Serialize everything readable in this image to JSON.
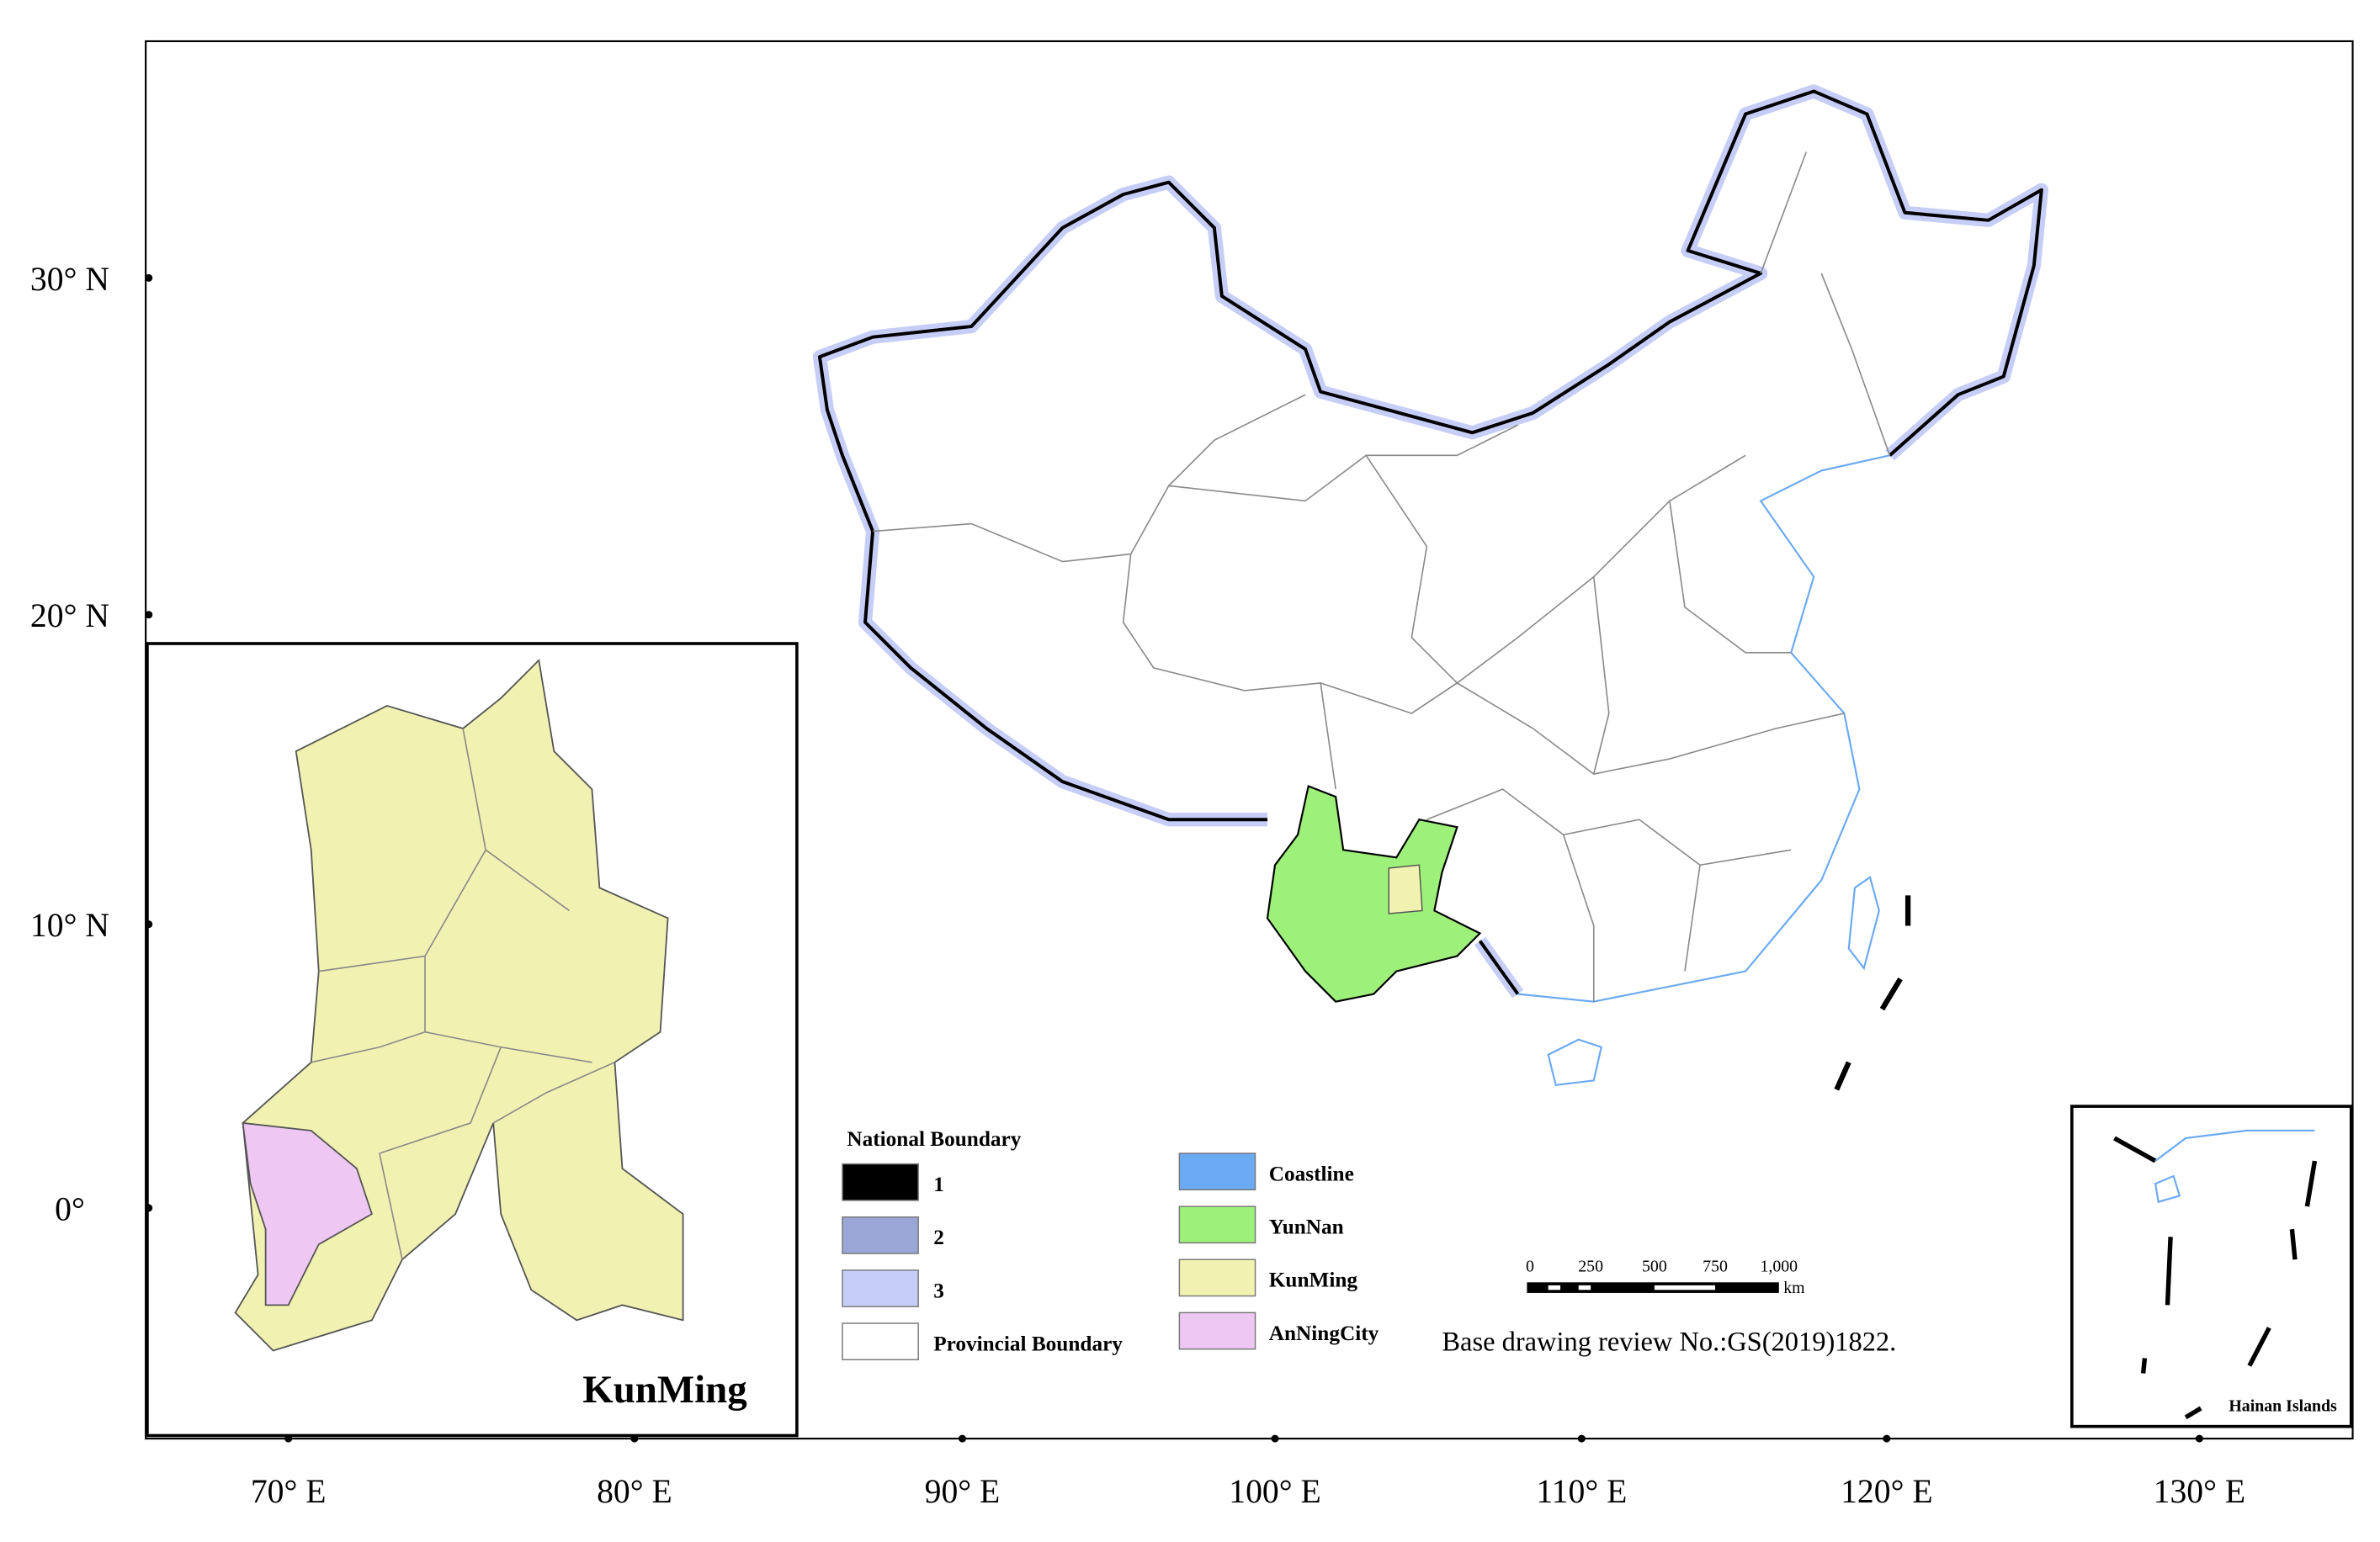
{
  "axes": {
    "latitude_labels": [
      "30° N",
      "20° N",
      "10° N",
      "0°"
    ],
    "longitude_labels": [
      "70° E",
      "80° E",
      "90° E",
      "100° E",
      "110° E",
      "120° E",
      "130° E"
    ]
  },
  "legend": {
    "title": "National Boundary",
    "items": [
      {
        "label": "1",
        "color": "#000000"
      },
      {
        "label": "2",
        "color": "#9aa6d6"
      },
      {
        "label": "3",
        "color": "#c6cef7"
      },
      {
        "label": "Provincial Boundary",
        "color": "#ffffff"
      },
      {
        "label": "Coastline",
        "color": "#6aaaf2"
      },
      {
        "label": "YunNan",
        "color": "#9df07a"
      },
      {
        "label": "KunMing",
        "color": "#f1f1b2"
      },
      {
        "label": "AnNingCity",
        "color": "#eec8f2"
      }
    ]
  },
  "inset": {
    "title": "KunMing"
  },
  "scale_bar": {
    "ticks": [
      "0",
      "250",
      "500",
      "750",
      "1,000"
    ],
    "unit": "km"
  },
  "note": "Base drawing review No.:GS(2019)1822.",
  "hainan_inset": {
    "label": "Hainan Islands"
  }
}
